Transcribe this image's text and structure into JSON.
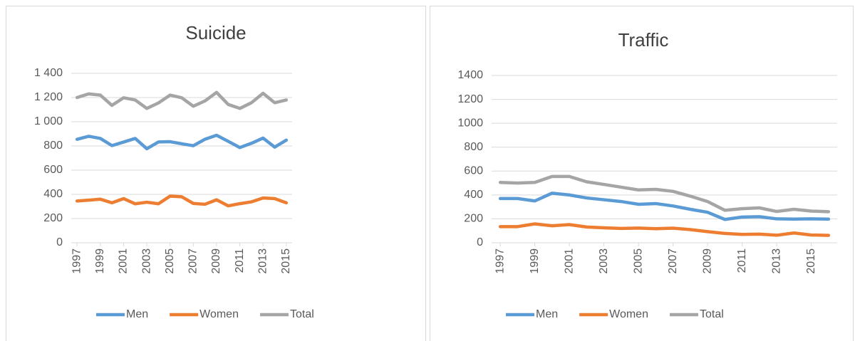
{
  "chart_data": [
    {
      "type": "line",
      "title": "Suicide",
      "x": [
        1997,
        1998,
        1999,
        2000,
        2001,
        2002,
        2003,
        2004,
        2005,
        2006,
        2007,
        2008,
        2009,
        2010,
        2011,
        2012,
        2013,
        2014,
        2015
      ],
      "xlim": [
        1996.5,
        2015.5
      ],
      "xticks": [
        1997,
        1999,
        2001,
        2003,
        2005,
        2007,
        2009,
        2011,
        2013,
        2015
      ],
      "ylim": [
        0,
        1400
      ],
      "yticks": [
        0,
        200,
        400,
        600,
        800,
        {
          "value": 1000,
          "label": "1 000"
        },
        {
          "value": 1200,
          "label": "1 200"
        },
        {
          "value": 1400,
          "label": "1 400"
        }
      ],
      "grid": true,
      "legend": "bottom",
      "series": [
        {
          "name": "Men",
          "color": "#5b9bd5",
          "values": [
            855,
            880,
            862,
            803,
            832,
            862,
            777,
            833,
            835,
            818,
            802,
            855,
            888,
            838,
            787,
            822,
            865,
            790,
            848
          ]
        },
        {
          "name": "Women",
          "color": "#ed7d31",
          "values": [
            345,
            352,
            360,
            330,
            365,
            322,
            335,
            322,
            385,
            380,
            325,
            318,
            355,
            305,
            323,
            338,
            370,
            365,
            330
          ]
        },
        {
          "name": "Total",
          "color": "#a5a5a5",
          "values": [
            1200,
            1230,
            1220,
            1135,
            1198,
            1180,
            1110,
            1155,
            1220,
            1198,
            1128,
            1172,
            1242,
            1143,
            1110,
            1157,
            1235,
            1157,
            1180
          ]
        }
      ]
    },
    {
      "type": "line",
      "title": "Traffic",
      "x": [
        1997,
        1998,
        1999,
        2000,
        2001,
        2002,
        2003,
        2004,
        2005,
        2006,
        2007,
        2008,
        2009,
        2010,
        2011,
        2012,
        2013,
        2014,
        2015,
        2016
      ],
      "xlim": [
        1996.5,
        2016.5
      ],
      "xticks": [
        1997,
        1999,
        2001,
        2003,
        2005,
        2007,
        2009,
        2011,
        2013,
        2015
      ],
      "ylim": [
        0,
        1400
      ],
      "yticks": [
        0,
        200,
        400,
        600,
        800,
        1000,
        1200,
        1400
      ],
      "grid": true,
      "legend": "bottom",
      "series": [
        {
          "name": "Men",
          "color": "#5b9bd5",
          "values": [
            370,
            370,
            350,
            415,
            400,
            375,
            360,
            345,
            322,
            328,
            308,
            280,
            255,
            195,
            215,
            218,
            200,
            198,
            200,
            198
          ]
        },
        {
          "name": "Women",
          "color": "#ed7d31",
          "values": [
            135,
            135,
            158,
            142,
            152,
            132,
            125,
            120,
            123,
            118,
            122,
            110,
            93,
            78,
            70,
            72,
            63,
            82,
            65,
            62
          ]
        },
        {
          "name": "Total",
          "color": "#a5a5a5",
          "values": [
            505,
            500,
            505,
            555,
            555,
            510,
            488,
            465,
            442,
            447,
            430,
            390,
            345,
            272,
            285,
            292,
            262,
            280,
            265,
            260
          ]
        }
      ]
    }
  ]
}
